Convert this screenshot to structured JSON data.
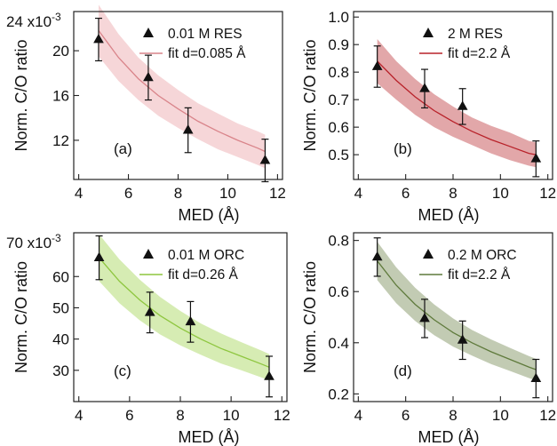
{
  "chart_data": [
    {
      "type": "scatter",
      "panel_label": "(a)",
      "xlabel": "MED (Å)",
      "ylabel": "Norm. C/O ratio",
      "xlim": [
        3.8,
        12.2
      ],
      "ylim": [
        8.5,
        23.5
      ],
      "xticks": [
        4,
        6,
        8,
        10,
        12
      ],
      "xtick_labels": [
        "4",
        "6",
        "8",
        "10",
        "12"
      ],
      "yticks": [
        12,
        16,
        20
      ],
      "ytick_labels": [
        "12",
        "16",
        "20"
      ],
      "y_multiplier_label": "24 x10",
      "y_multiplier_exp": "-3",
      "series": [
        {
          "name": "0.01 M RES",
          "x": [
            4.8,
            6.8,
            8.4,
            11.5
          ],
          "y": [
            21.0,
            17.6,
            12.9,
            10.2
          ],
          "err": [
            1.9,
            2.0,
            2.0,
            1.9
          ]
        }
      ],
      "fit": {
        "name": "fit d=0.085 Å",
        "color": "#d9848a",
        "band_color": "#f2c5c8",
        "band_opacity": 0.7,
        "x": [
          4.8,
          5.6,
          6.4,
          7.2,
          8.0,
          8.8,
          9.6,
          10.4,
          11.2,
          11.5
        ],
        "y": [
          21.8,
          19.4,
          17.5,
          16.0,
          14.8,
          13.7,
          12.8,
          12.0,
          11.3,
          11.0
        ],
        "band": [
          2.3,
          2.1,
          1.9,
          1.8,
          1.7,
          1.6,
          1.6,
          1.5,
          1.5,
          1.5
        ]
      },
      "legend": "top-right"
    },
    {
      "type": "scatter",
      "panel_label": "(b)",
      "xlabel": "MED (Å)",
      "ylabel": "Norm. C/O ratio",
      "xlim": [
        3.8,
        12.2
      ],
      "ylim": [
        0.41,
        1.02
      ],
      "xticks": [
        4,
        6,
        8,
        10,
        12
      ],
      "xtick_labels": [
        "4",
        "6",
        "8",
        "10",
        "12"
      ],
      "yticks": [
        0.5,
        0.6,
        0.7,
        0.8,
        0.9,
        1.0
      ],
      "ytick_labels": [
        "0.5",
        "0.6",
        "0.7",
        "0.8",
        "0.9",
        "1.0"
      ],
      "series": [
        {
          "name": "2 M RES",
          "x": [
            4.8,
            6.8,
            8.4,
            11.5
          ],
          "y": [
            0.82,
            0.74,
            0.675,
            0.485
          ],
          "err": [
            0.075,
            0.07,
            0.065,
            0.065
          ]
        }
      ],
      "fit": {
        "name": "fit d=2.2 Å",
        "color": "#b8222a",
        "band_color": "#cf6c70",
        "band_opacity": 0.6,
        "x": [
          4.8,
          5.6,
          6.4,
          7.2,
          8.0,
          8.8,
          9.6,
          10.4,
          11.2,
          11.5
        ],
        "y": [
          0.84,
          0.77,
          0.71,
          0.66,
          0.62,
          0.585,
          0.555,
          0.53,
          0.505,
          0.5
        ],
        "band": [
          0.08,
          0.07,
          0.065,
          0.06,
          0.055,
          0.05,
          0.05,
          0.05,
          0.045,
          0.045
        ]
      },
      "legend": "top-right"
    },
    {
      "type": "scatter",
      "panel_label": "(c)",
      "xlabel": "MED (Å)",
      "ylabel": "Norm. C/O ratio",
      "xlim": [
        3.8,
        12.2
      ],
      "ylim": [
        20,
        74
      ],
      "xticks": [
        4,
        6,
        8,
        10,
        12
      ],
      "xtick_labels": [
        "4",
        "6",
        "8",
        "10",
        "12"
      ],
      "yticks": [
        30,
        40,
        50,
        60
      ],
      "ytick_labels": [
        "30",
        "40",
        "50",
        "60"
      ],
      "y_multiplier_label": "70 x10",
      "y_multiplier_exp": "-3",
      "series": [
        {
          "name": "0.01 M ORC",
          "x": [
            4.8,
            6.8,
            8.4,
            11.5
          ],
          "y": [
            66.0,
            48.5,
            45.5,
            28.0
          ],
          "err": [
            7.0,
            6.5,
            6.5,
            6.5
          ]
        }
      ],
      "fit": {
        "name": "fit d=0.26 Å",
        "color": "#8ec63f",
        "band_color": "#c8e69a",
        "band_opacity": 0.75,
        "x": [
          4.8,
          5.6,
          6.4,
          7.2,
          8.0,
          8.8,
          9.6,
          10.4,
          11.2,
          11.5
        ],
        "y": [
          66.0,
          58.5,
          52.5,
          47.5,
          43.5,
          40.0,
          37.0,
          34.5,
          32.0,
          31.0
        ],
        "band": [
          7.5,
          7.0,
          6.5,
          6.0,
          5.5,
          5.0,
          4.8,
          4.5,
          4.3,
          4.2
        ]
      },
      "legend": "top-right"
    },
    {
      "type": "scatter",
      "panel_label": "(d)",
      "xlabel": "MED (Å)",
      "ylabel": "Norm. C/O ratio",
      "xlim": [
        3.8,
        12.2
      ],
      "ylim": [
        0.17,
        0.83
      ],
      "xticks": [
        4,
        6,
        8,
        10,
        12
      ],
      "xtick_labels": [
        "4",
        "6",
        "8",
        "10",
        "12"
      ],
      "yticks": [
        0.2,
        0.4,
        0.6,
        0.8
      ],
      "ytick_labels": [
        "0.2",
        "0.4",
        "0.6",
        "0.8"
      ],
      "series": [
        {
          "name": "0.2 M ORC",
          "x": [
            4.8,
            6.8,
            8.4,
            11.5
          ],
          "y": [
            0.735,
            0.495,
            0.41,
            0.26
          ],
          "err": [
            0.075,
            0.075,
            0.075,
            0.075
          ]
        }
      ],
      "fit": {
        "name": "fit d=2.2 Å",
        "color": "#5f7a3c",
        "band_color": "#b3bea0",
        "band_opacity": 0.8,
        "x": [
          4.8,
          5.6,
          6.4,
          7.2,
          8.0,
          8.8,
          9.6,
          10.4,
          11.2,
          11.5
        ],
        "y": [
          0.72,
          0.625,
          0.55,
          0.49,
          0.44,
          0.4,
          0.365,
          0.335,
          0.305,
          0.295
        ],
        "band": [
          0.075,
          0.07,
          0.065,
          0.06,
          0.055,
          0.05,
          0.048,
          0.045,
          0.043,
          0.042
        ]
      },
      "legend": "top-right"
    }
  ]
}
